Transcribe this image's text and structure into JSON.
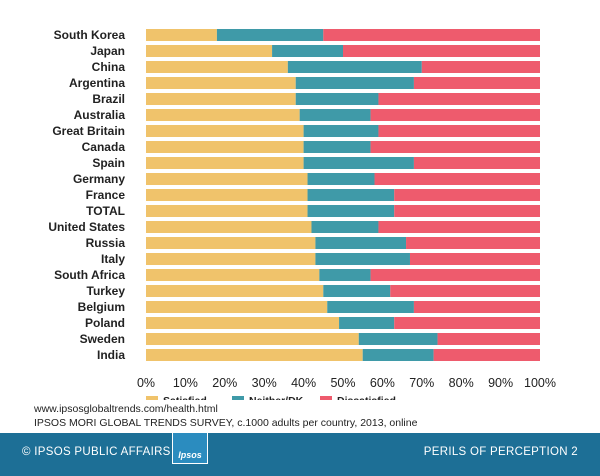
{
  "chart_data": {
    "type": "bar",
    "stacked": true,
    "orientation": "horizontal",
    "categories": [
      "South Korea",
      "Japan",
      "China",
      "Argentina",
      "Brazil",
      "Australia",
      "Great Britain",
      "Canada",
      "Spain",
      "Germany",
      "France",
      "TOTAL",
      "United States",
      "Russia",
      "Italy",
      "South Africa",
      "Turkey",
      "Belgium",
      "Poland",
      "Sweden",
      "India"
    ],
    "series": [
      {
        "name": "Satisfied",
        "color": "#f0c36b",
        "values": [
          18,
          32,
          36,
          38,
          38,
          39,
          40,
          40,
          40,
          41,
          41,
          41,
          42,
          43,
          43,
          44,
          45,
          46,
          49,
          54,
          55
        ]
      },
      {
        "name": "Neither/DK",
        "color": "#3f9aa8",
        "values": [
          27,
          18,
          34,
          30,
          21,
          18,
          19,
          17,
          28,
          17,
          22,
          22,
          17,
          23,
          24,
          13,
          17,
          22,
          14,
          20,
          18
        ]
      },
      {
        "name": "Dissatisfied",
        "color": "#ee5b6d",
        "values": [
          55,
          50,
          30,
          32,
          41,
          43,
          41,
          43,
          32,
          42,
          37,
          37,
          41,
          34,
          33,
          43,
          38,
          32,
          37,
          26,
          27
        ]
      }
    ],
    "xlim": [
      0,
      100
    ],
    "xticks": [
      "0%",
      "10%",
      "20%",
      "30%",
      "40%",
      "50%",
      "60%",
      "70%",
      "80%",
      "90%",
      "100%"
    ],
    "legend_position": "bottom-left",
    "grid": false
  },
  "source": {
    "url": "www.ipsosglobaltrends.com/health.html",
    "note": "IPSOS MORI GLOBAL TRENDS SURVEY, c.1000 adults per country, 2013, online"
  },
  "footer": {
    "left": "© IPSOS PUBLIC AFFAIRS",
    "right": "PERILS OF PERCEPTION 2",
    "logo": "Ipsos",
    "color": "#1d6f96"
  }
}
